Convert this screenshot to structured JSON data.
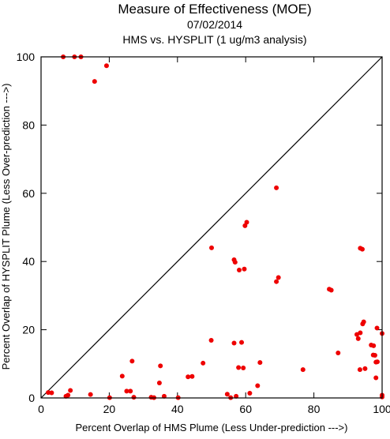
{
  "chart_data": {
    "type": "scatter",
    "title": "Measure of Effectiveness (MOE)",
    "subtitle": "07/02/2014",
    "subtitle2": "HMS vs. HYSPLIT  (1 ug/m3 analysis)",
    "xlabel": "Percent Overlap of HMS Plume (Less Under-prediction --->)",
    "ylabel": "Percent Overlap of HYSPLIT Plume (Less Over-prediction --->)",
    "xlim": [
      0,
      100
    ],
    "ylim": [
      0,
      100
    ],
    "xticks": [
      0,
      20,
      40,
      60,
      80,
      100
    ],
    "yticks": [
      0,
      20,
      40,
      60,
      80,
      100
    ],
    "grid": false,
    "reference_line": "diagonal y = x",
    "point_color": "#ee0000",
    "line_color": "#000000",
    "points": [
      {
        "x": 6.5,
        "y": 100
      },
      {
        "x": 9.8,
        "y": 100
      },
      {
        "x": 11.7,
        "y": 100
      },
      {
        "x": 15.7,
        "y": 92.8
      },
      {
        "x": 19.2,
        "y": 97.4
      },
      {
        "x": 69,
        "y": 61.6
      },
      {
        "x": 60.3,
        "y": 51.5
      },
      {
        "x": 59.8,
        "y": 50.5
      },
      {
        "x": 50,
        "y": 44
      },
      {
        "x": 93.6,
        "y": 43.9
      },
      {
        "x": 94.2,
        "y": 43.6
      },
      {
        "x": 56.6,
        "y": 40.5
      },
      {
        "x": 56.9,
        "y": 39.8
      },
      {
        "x": 59.6,
        "y": 37.8
      },
      {
        "x": 58.1,
        "y": 37.5
      },
      {
        "x": 69.6,
        "y": 35.3
      },
      {
        "x": 69,
        "y": 34.1
      },
      {
        "x": 84.5,
        "y": 31.9
      },
      {
        "x": 85.1,
        "y": 31.6
      },
      {
        "x": 94.6,
        "y": 22.3
      },
      {
        "x": 98.5,
        "y": 20.5
      },
      {
        "x": 94.3,
        "y": 21.7
      },
      {
        "x": 93.6,
        "y": 19.1
      },
      {
        "x": 92.6,
        "y": 18.6
      },
      {
        "x": 93,
        "y": 17.4
      },
      {
        "x": 100,
        "y": 18.9
      },
      {
        "x": 49.9,
        "y": 16.9
      },
      {
        "x": 56.6,
        "y": 16.1
      },
      {
        "x": 58.8,
        "y": 16.3
      },
      {
        "x": 96.8,
        "y": 15.5
      },
      {
        "x": 97.5,
        "y": 15.3
      },
      {
        "x": 87.1,
        "y": 13.2
      },
      {
        "x": 97.4,
        "y": 12.6
      },
      {
        "x": 97.9,
        "y": 12.5
      },
      {
        "x": 98.6,
        "y": 10.6
      },
      {
        "x": 98.2,
        "y": 10.5
      },
      {
        "x": 26.7,
        "y": 10.8
      },
      {
        "x": 47.5,
        "y": 10.2
      },
      {
        "x": 64.2,
        "y": 10.4
      },
      {
        "x": 35,
        "y": 9.4
      },
      {
        "x": 57.9,
        "y": 8.9
      },
      {
        "x": 59.3,
        "y": 8.8
      },
      {
        "x": 76.8,
        "y": 8.3
      },
      {
        "x": 93.5,
        "y": 8.3
      },
      {
        "x": 95,
        "y": 8.6
      },
      {
        "x": 23.8,
        "y": 6.4
      },
      {
        "x": 43.1,
        "y": 6.2
      },
      {
        "x": 44.3,
        "y": 6.3
      },
      {
        "x": 98.2,
        "y": 5.9
      },
      {
        "x": 34.7,
        "y": 4.4
      },
      {
        "x": 63.5,
        "y": 3.6
      },
      {
        "x": 8.6,
        "y": 2.2
      },
      {
        "x": 25.1,
        "y": 2
      },
      {
        "x": 26.2,
        "y": 2
      },
      {
        "x": 61.2,
        "y": 1.4
      },
      {
        "x": 2.1,
        "y": 1.6
      },
      {
        "x": 3.1,
        "y": 1.5
      },
      {
        "x": 14.5,
        "y": 1
      },
      {
        "x": 54.6,
        "y": 1.1
      },
      {
        "x": 7.3,
        "y": 0.5
      },
      {
        "x": 7.9,
        "y": 0.8
      },
      {
        "x": 57.2,
        "y": 0.5
      },
      {
        "x": 100,
        "y": 0.8
      },
      {
        "x": 100,
        "y": 0.3
      },
      {
        "x": 20.1,
        "y": 0.1
      },
      {
        "x": 27.2,
        "y": 0.2
      },
      {
        "x": 32.3,
        "y": 0.2
      },
      {
        "x": 33.1,
        "y": 0.1
      },
      {
        "x": 36.1,
        "y": 0.5
      },
      {
        "x": 40.2,
        "y": 0.1
      },
      {
        "x": 55.6,
        "y": 0.1
      }
    ]
  }
}
